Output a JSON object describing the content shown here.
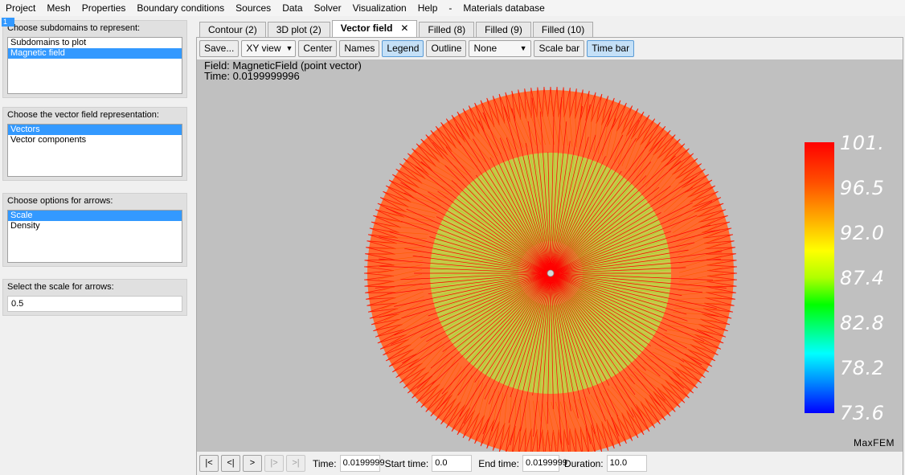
{
  "menu": [
    "Project",
    "Mesh",
    "Properties",
    "Boundary conditions",
    "Sources",
    "Data",
    "Solver",
    "Visualization",
    "Help",
    "-",
    "Materials database"
  ],
  "left": {
    "marker": "1",
    "subdomains": {
      "label": "Choose subdomains to represent:",
      "items": [
        {
          "label": "Subdomains to plot",
          "selected": false
        },
        {
          "label": "Magnetic field",
          "selected": true
        }
      ]
    },
    "representation": {
      "label": "Choose the vector field representation:",
      "items": [
        {
          "label": "Vectors",
          "selected": true
        },
        {
          "label": "Vector components",
          "selected": false
        }
      ]
    },
    "arrows": {
      "label": "Choose options for arrows:",
      "items": [
        {
          "label": "Scale",
          "selected": true
        },
        {
          "label": "Density",
          "selected": false
        }
      ]
    },
    "scale": {
      "label": "Select the scale for arrows:",
      "value": "0.5"
    }
  },
  "tabs": [
    {
      "label": "Contour (2)",
      "active": false
    },
    {
      "label": "3D plot (2)",
      "active": false
    },
    {
      "label": "Vector field",
      "active": true,
      "close": "✕"
    },
    {
      "label": "Filled (8)",
      "active": false
    },
    {
      "label": "Filled (9)",
      "active": false
    },
    {
      "label": "Filled (10)",
      "active": false
    }
  ],
  "toolbar": {
    "save": "Save...",
    "view": "XY view",
    "center": "Center",
    "names": "Names",
    "legend": "Legend",
    "outline": "Outline",
    "outline_select": "None",
    "scale_bar": "Scale bar",
    "time_bar": "Time bar",
    "dropdown_icon": "chevron-down-icon"
  },
  "plot": {
    "field_text": "Field: MagneticField (point vector)",
    "time_text": "Time: 0.0199999996",
    "colorbar_labels": [
      "101.",
      "96.5",
      "92.0",
      "87.4",
      "82.8",
      "78.2",
      "73.6"
    ],
    "brand": "MaxFEM",
    "colors": {
      "outer": "#ff1a00",
      "mid": "#ff5a00",
      "inner": "#9fd22a",
      "hub": "#ff0000",
      "background": "#c0c0c0"
    }
  },
  "bottom": {
    "nav": [
      "|<",
      "<|",
      ">",
      "|>",
      ">|"
    ],
    "time_label": "Time:",
    "time_value": "0.0199999",
    "start_label": "Start time:",
    "start_value": "0.0",
    "end_label": "End time:",
    "end_value": "0.0199999",
    "duration_label": "Duration:",
    "duration_value": "10.0"
  }
}
